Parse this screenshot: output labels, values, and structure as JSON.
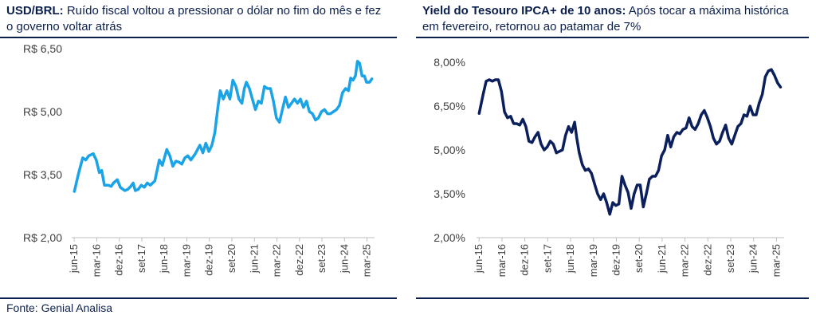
{
  "left": {
    "title_bold": "USD/BRL:",
    "title_rest": " Ruído fiscal voltou a pressionar o dólar no fim do mês e fez o governo voltar atrás"
  },
  "right": {
    "title_bold": "Yield do Tesouro IPCA+ de 10 anos:",
    "title_rest": " Após tocar a máxima histórica em fevereiro, retornou ao patamar de 7%"
  },
  "source": "Fonte: Genial Analisa",
  "chart_data": [
    {
      "type": "line",
      "color": "#1aa3e6",
      "ylim": [
        2.0,
        6.5
      ],
      "yticks": [
        2.0,
        3.5,
        5.0,
        6.5
      ],
      "ytick_labels": [
        "R$ 2,00",
        "R$ 3,50",
        "R$ 5,00",
        "R$ 6,50"
      ],
      "xlim": [
        2015.333,
        2025.417
      ],
      "xticks": [
        2015.417,
        2016.167,
        2016.917,
        2017.667,
        2018.417,
        2019.167,
        2019.917,
        2020.667,
        2021.417,
        2022.167,
        2022.917,
        2023.667,
        2024.417,
        2025.167
      ],
      "xtick_labels": [
        "jun-15",
        "mar-16",
        "dez-16",
        "set-17",
        "jun-18",
        "mar-19",
        "dez-19",
        "set-20",
        "jun-21",
        "mar-22",
        "dez-22",
        "set-23",
        "jun-24",
        "mar-25"
      ],
      "points": [
        [
          2015.42,
          3.1
        ],
        [
          2015.55,
          3.5
        ],
        [
          2015.7,
          3.9
        ],
        [
          2015.8,
          3.85
        ],
        [
          2015.9,
          3.95
        ],
        [
          2016.05,
          4.0
        ],
        [
          2016.15,
          3.85
        ],
        [
          2016.25,
          3.55
        ],
        [
          2016.33,
          3.6
        ],
        [
          2016.42,
          3.25
        ],
        [
          2016.55,
          3.25
        ],
        [
          2016.65,
          3.22
        ],
        [
          2016.72,
          3.3
        ],
        [
          2016.85,
          3.38
        ],
        [
          2016.95,
          3.2
        ],
        [
          2017.1,
          3.12
        ],
        [
          2017.2,
          3.15
        ],
        [
          2017.3,
          3.22
        ],
        [
          2017.38,
          3.3
        ],
        [
          2017.45,
          3.12
        ],
        [
          2017.55,
          3.15
        ],
        [
          2017.65,
          3.25
        ],
        [
          2017.75,
          3.2
        ],
        [
          2017.85,
          3.3
        ],
        [
          2017.95,
          3.25
        ],
        [
          2018.1,
          3.35
        ],
        [
          2018.25,
          3.85
        ],
        [
          2018.35,
          3.72
        ],
        [
          2018.5,
          4.1
        ],
        [
          2018.6,
          3.95
        ],
        [
          2018.7,
          3.7
        ],
        [
          2018.8,
          3.82
        ],
        [
          2018.9,
          3.8
        ],
        [
          2019.0,
          3.75
        ],
        [
          2019.1,
          3.9
        ],
        [
          2019.2,
          3.95
        ],
        [
          2019.3,
          3.85
        ],
        [
          2019.45,
          4.0
        ],
        [
          2019.6,
          4.2
        ],
        [
          2019.7,
          4.02
        ],
        [
          2019.8,
          4.25
        ],
        [
          2019.9,
          4.05
        ],
        [
          2020.0,
          4.2
        ],
        [
          2020.1,
          4.5
        ],
        [
          2020.2,
          5.1
        ],
        [
          2020.28,
          5.5
        ],
        [
          2020.38,
          5.3
        ],
        [
          2020.5,
          5.5
        ],
        [
          2020.6,
          5.3
        ],
        [
          2020.7,
          5.75
        ],
        [
          2020.8,
          5.6
        ],
        [
          2020.9,
          5.3
        ],
        [
          2021.0,
          5.2
        ],
        [
          2021.08,
          5.55
        ],
        [
          2021.15,
          5.7
        ],
        [
          2021.25,
          5.55
        ],
        [
          2021.35,
          5.3
        ],
        [
          2021.45,
          5.05
        ],
        [
          2021.55,
          5.25
        ],
        [
          2021.65,
          5.2
        ],
        [
          2021.75,
          5.6
        ],
        [
          2021.85,
          5.55
        ],
        [
          2021.95,
          5.55
        ],
        [
          2022.05,
          5.25
        ],
        [
          2022.15,
          4.85
        ],
        [
          2022.25,
          4.75
        ],
        [
          2022.35,
          5.05
        ],
        [
          2022.45,
          5.35
        ],
        [
          2022.55,
          5.1
        ],
        [
          2022.65,
          5.2
        ],
        [
          2022.75,
          5.3
        ],
        [
          2022.85,
          5.2
        ],
        [
          2022.95,
          5.3
        ],
        [
          2023.05,
          5.1
        ],
        [
          2023.15,
          5.25
        ],
        [
          2023.25,
          5.0
        ],
        [
          2023.35,
          4.95
        ],
        [
          2023.45,
          4.8
        ],
        [
          2023.55,
          4.85
        ],
        [
          2023.65,
          5.0
        ],
        [
          2023.75,
          5.05
        ],
        [
          2023.85,
          4.95
        ],
        [
          2023.95,
          4.95
        ],
        [
          2024.05,
          5.0
        ],
        [
          2024.15,
          5.05
        ],
        [
          2024.25,
          5.15
        ],
        [
          2024.35,
          5.45
        ],
        [
          2024.45,
          5.55
        ],
        [
          2024.55,
          5.5
        ],
        [
          2024.62,
          5.8
        ],
        [
          2024.7,
          5.75
        ],
        [
          2024.78,
          5.85
        ],
        [
          2024.85,
          6.2
        ],
        [
          2024.92,
          6.15
        ],
        [
          2025.0,
          5.85
        ],
        [
          2025.08,
          5.85
        ],
        [
          2025.15,
          5.7
        ],
        [
          2025.25,
          5.7
        ],
        [
          2025.33,
          5.78
        ]
      ]
    },
    {
      "type": "line",
      "color": "#0b1f5c",
      "ylim": [
        2.0,
        8.0
      ],
      "yticks": [
        2.0,
        3.5,
        5.0,
        6.5,
        8.0
      ],
      "ytick_labels": [
        "2,00%",
        "3,50%",
        "5,00%",
        "6,50%",
        "8,00%"
      ],
      "xlim": [
        2015.333,
        2025.417
      ],
      "xticks": [
        2015.417,
        2016.167,
        2016.917,
        2017.667,
        2018.417,
        2019.167,
        2019.917,
        2020.667,
        2021.417,
        2022.167,
        2022.917,
        2023.667,
        2024.417,
        2025.167
      ],
      "xtick_labels": [
        "jun-15",
        "mar-16",
        "dez-16",
        "set-17",
        "jun-18",
        "mar-19",
        "dez-19",
        "set-20",
        "jun-21",
        "mar-22",
        "dez-22",
        "set-23",
        "jun-24",
        "mar-25"
      ],
      "points": [
        [
          2015.42,
          6.25
        ],
        [
          2015.55,
          6.9
        ],
        [
          2015.65,
          7.35
        ],
        [
          2015.75,
          7.4
        ],
        [
          2015.85,
          7.35
        ],
        [
          2015.95,
          7.4
        ],
        [
          2016.05,
          7.4
        ],
        [
          2016.15,
          7.0
        ],
        [
          2016.25,
          6.3
        ],
        [
          2016.35,
          6.1
        ],
        [
          2016.45,
          6.15
        ],
        [
          2016.55,
          5.9
        ],
        [
          2016.65,
          5.9
        ],
        [
          2016.75,
          5.85
        ],
        [
          2016.85,
          6.05
        ],
        [
          2016.95,
          5.8
        ],
        [
          2017.05,
          5.3
        ],
        [
          2017.15,
          5.25
        ],
        [
          2017.25,
          5.45
        ],
        [
          2017.35,
          5.6
        ],
        [
          2017.45,
          5.2
        ],
        [
          2017.55,
          5.0
        ],
        [
          2017.65,
          5.1
        ],
        [
          2017.75,
          5.3
        ],
        [
          2017.85,
          5.2
        ],
        [
          2017.95,
          4.9
        ],
        [
          2018.05,
          4.95
        ],
        [
          2018.15,
          5.0
        ],
        [
          2018.25,
          5.5
        ],
        [
          2018.35,
          5.8
        ],
        [
          2018.45,
          5.6
        ],
        [
          2018.55,
          5.95
        ],
        [
          2018.62,
          5.4
        ],
        [
          2018.7,
          4.9
        ],
        [
          2018.8,
          4.5
        ],
        [
          2018.9,
          4.3
        ],
        [
          2019.0,
          4.35
        ],
        [
          2019.1,
          4.2
        ],
        [
          2019.2,
          3.85
        ],
        [
          2019.3,
          3.5
        ],
        [
          2019.4,
          3.3
        ],
        [
          2019.5,
          3.5
        ],
        [
          2019.6,
          3.2
        ],
        [
          2019.7,
          2.8
        ],
        [
          2019.8,
          3.2
        ],
        [
          2019.9,
          3.1
        ],
        [
          2020.0,
          3.15
        ],
        [
          2020.1,
          4.1
        ],
        [
          2020.2,
          3.8
        ],
        [
          2020.3,
          3.55
        ],
        [
          2020.4,
          3.0
        ],
        [
          2020.5,
          3.5
        ],
        [
          2020.6,
          3.8
        ],
        [
          2020.7,
          3.8
        ],
        [
          2020.8,
          3.05
        ],
        [
          2020.9,
          3.5
        ],
        [
          2021.0,
          4.0
        ],
        [
          2021.1,
          4.1
        ],
        [
          2021.2,
          4.1
        ],
        [
          2021.3,
          4.3
        ],
        [
          2021.4,
          4.8
        ],
        [
          2021.5,
          5.0
        ],
        [
          2021.6,
          5.5
        ],
        [
          2021.7,
          5.1
        ],
        [
          2021.8,
          5.45
        ],
        [
          2021.9,
          5.6
        ],
        [
          2022.0,
          5.55
        ],
        [
          2022.1,
          5.7
        ],
        [
          2022.2,
          5.75
        ],
        [
          2022.3,
          6.1
        ],
        [
          2022.4,
          5.8
        ],
        [
          2022.5,
          5.7
        ],
        [
          2022.6,
          5.9
        ],
        [
          2022.7,
          6.2
        ],
        [
          2022.8,
          6.35
        ],
        [
          2022.9,
          6.1
        ],
        [
          2023.0,
          5.8
        ],
        [
          2023.1,
          5.4
        ],
        [
          2023.2,
          5.2
        ],
        [
          2023.3,
          5.3
        ],
        [
          2023.4,
          5.6
        ],
        [
          2023.5,
          5.85
        ],
        [
          2023.6,
          5.4
        ],
        [
          2023.7,
          5.2
        ],
        [
          2023.8,
          5.5
        ],
        [
          2023.9,
          5.8
        ],
        [
          2024.0,
          5.9
        ],
        [
          2024.1,
          6.2
        ],
        [
          2024.2,
          6.15
        ],
        [
          2024.3,
          6.5
        ],
        [
          2024.4,
          6.2
        ],
        [
          2024.5,
          6.2
        ],
        [
          2024.6,
          6.6
        ],
        [
          2024.7,
          6.9
        ],
        [
          2024.8,
          7.5
        ],
        [
          2024.9,
          7.7
        ],
        [
          2025.0,
          7.75
        ],
        [
          2025.1,
          7.55
        ],
        [
          2025.2,
          7.3
        ],
        [
          2025.3,
          7.15
        ]
      ]
    }
  ]
}
